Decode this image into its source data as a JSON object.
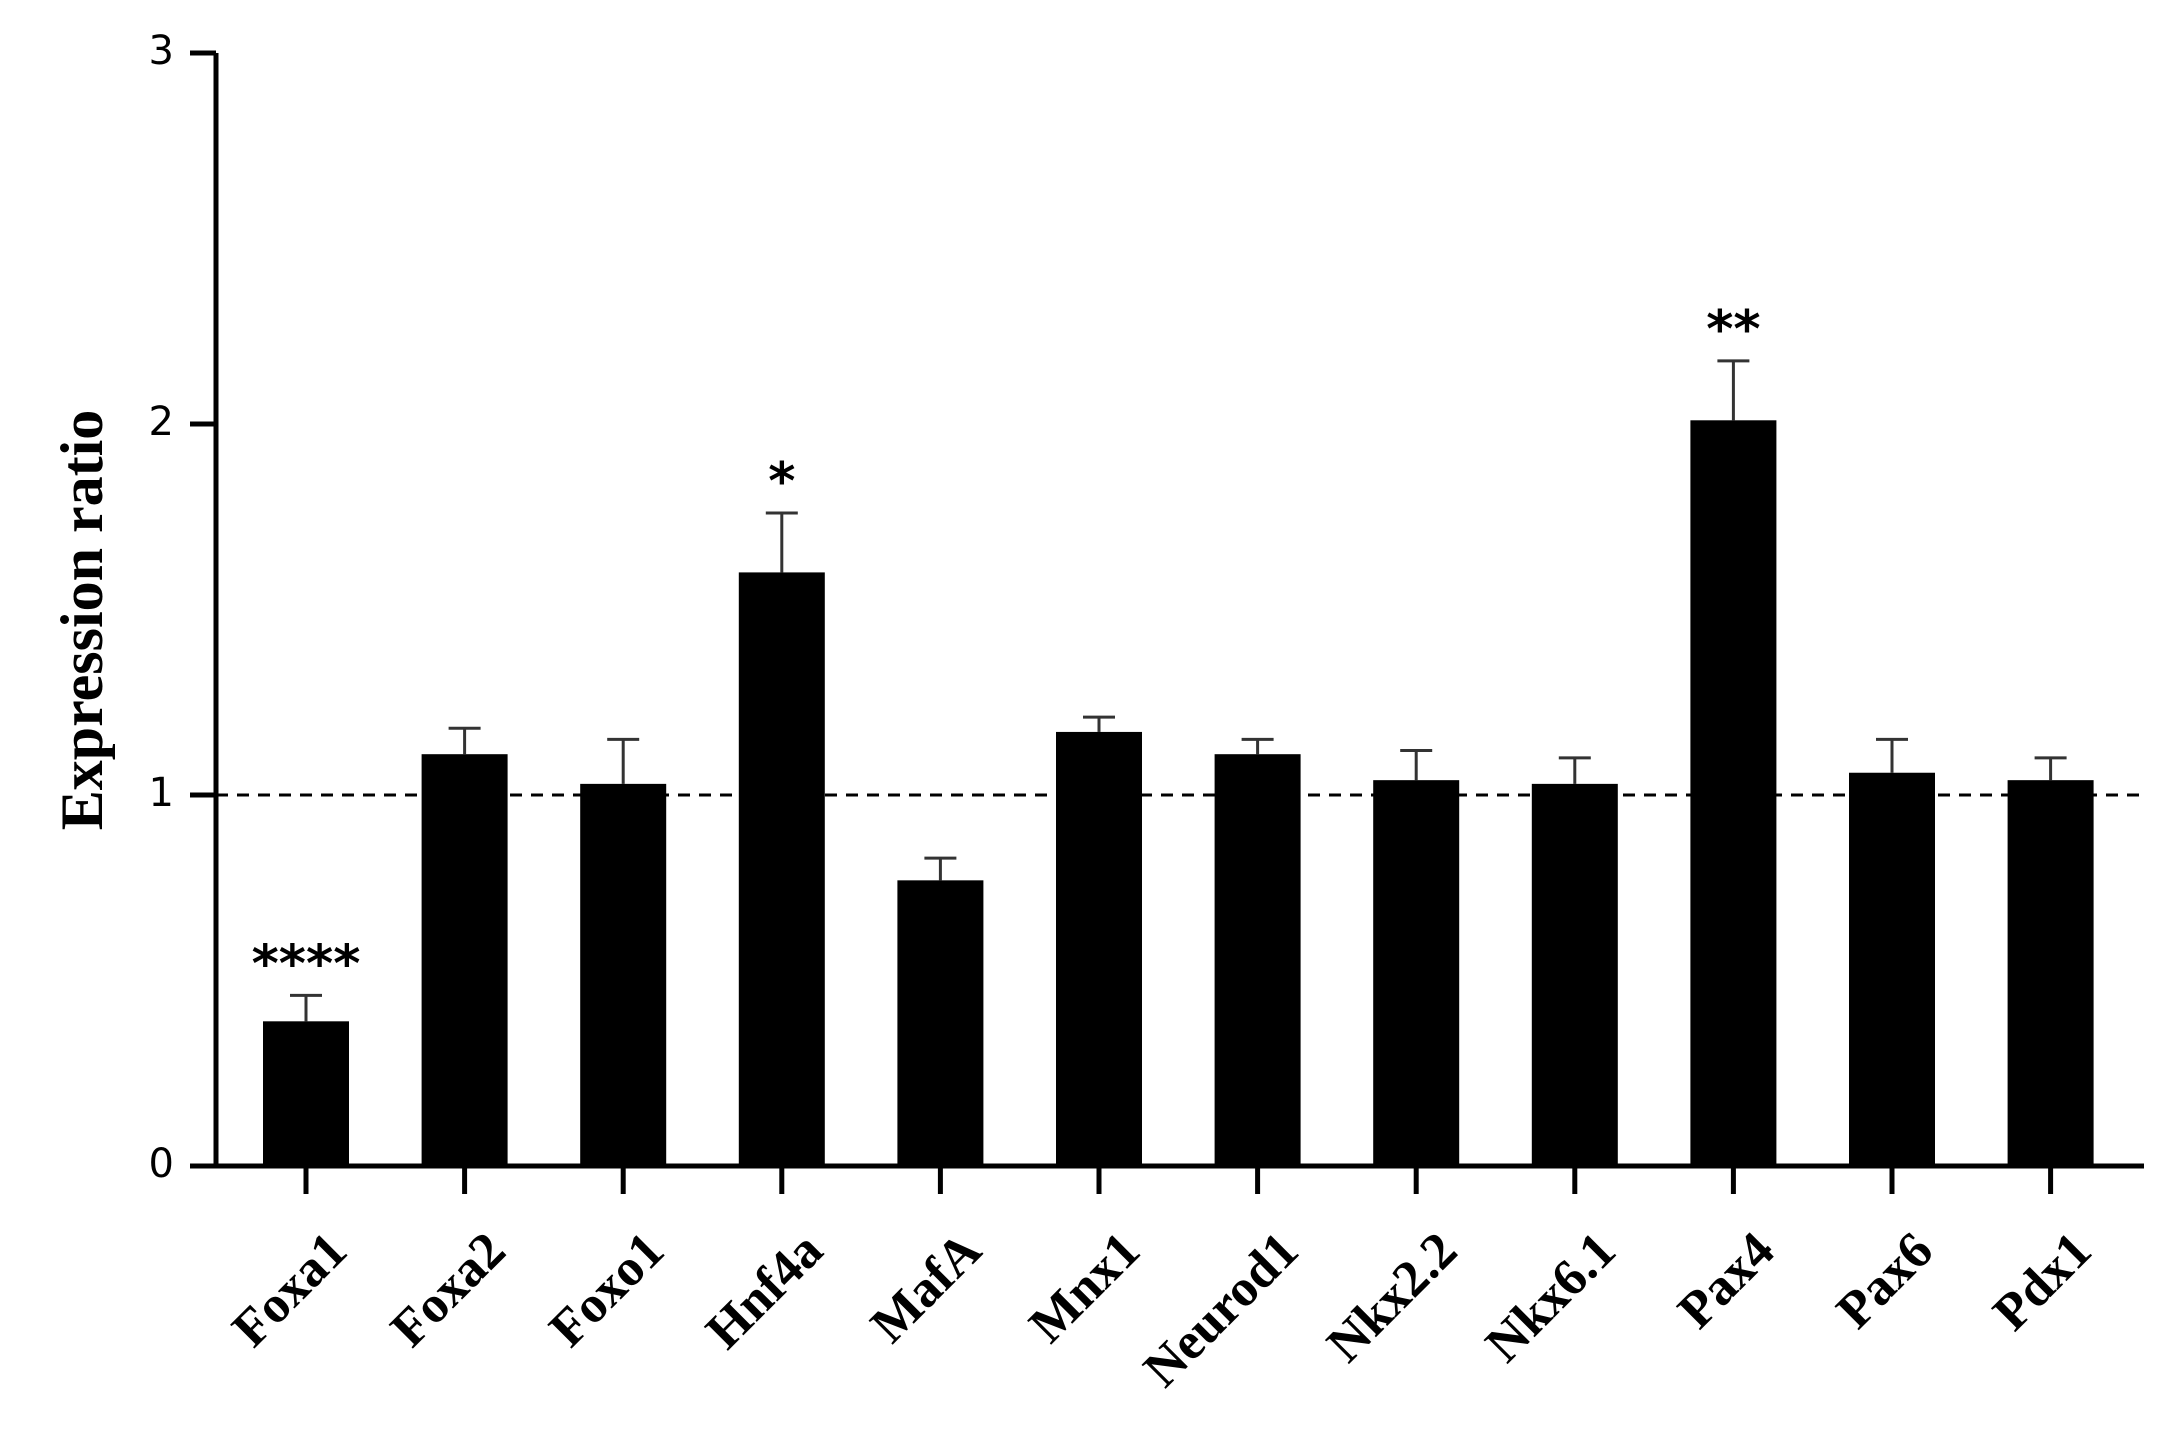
{
  "chart_data": {
    "type": "bar",
    "y_label": "Expression ratio",
    "categories": [
      "Foxa1",
      "Foxa2",
      "Foxo1",
      "Hnf4a",
      "MafA",
      "Mnx1",
      "Neurod1",
      "Nkx2.2",
      "Nkx6.1",
      "Pax4",
      "Pax6",
      "Pdx1"
    ],
    "values": [
      0.39,
      1.11,
      1.03,
      1.6,
      0.77,
      1.17,
      1.11,
      1.04,
      1.03,
      2.01,
      1.06,
      1.04
    ],
    "errors": [
      0.07,
      0.07,
      0.12,
      0.16,
      0.06,
      0.04,
      0.04,
      0.08,
      0.07,
      0.16,
      0.09,
      0.06
    ],
    "significance": [
      "****",
      null,
      null,
      "*",
      null,
      null,
      null,
      null,
      null,
      "**",
      null,
      null
    ],
    "color": "#000000",
    "reference_line": 1,
    "ylim": [
      0,
      3
    ],
    "yticks": [
      0,
      1,
      2,
      3
    ],
    "grid": false
  }
}
